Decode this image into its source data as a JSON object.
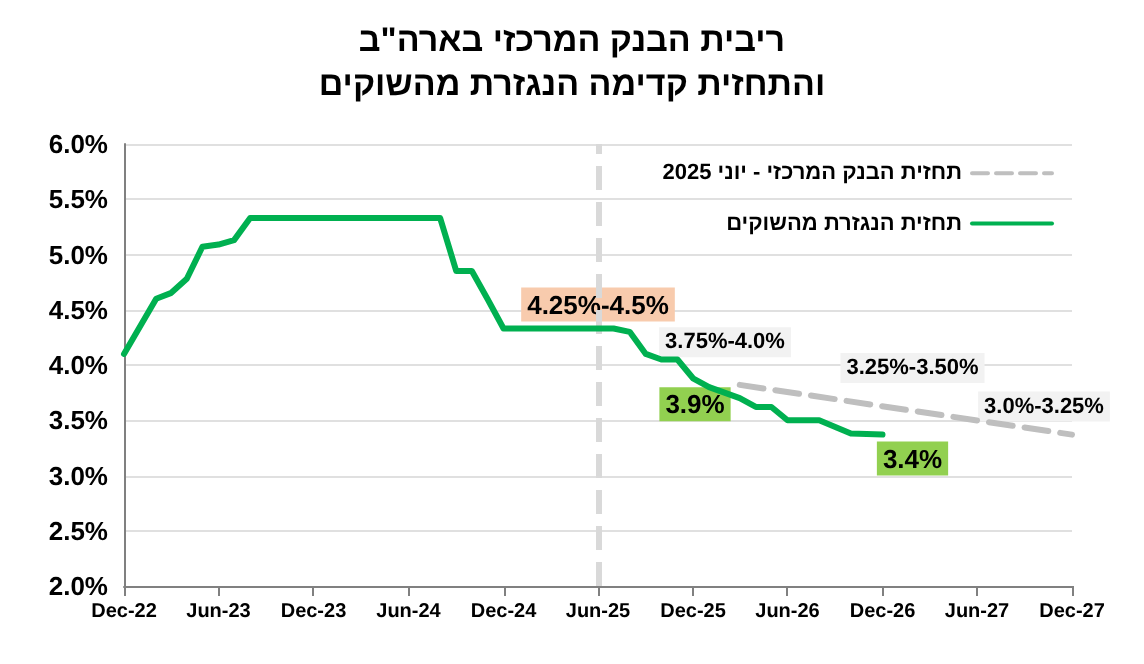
{
  "chart_data": {
    "type": "line",
    "title": "ריבית הבנק המרכזי בארה\"ב\nוהתחזית קדימה הנגזרת מהשוקים",
    "series": [
      {
        "name": "תחזית הבנק המרכזי - יוני 2025",
        "color": "#bfbfbf",
        "line_style": "dashed",
        "x": [
          "2026-03",
          "2027-12"
        ],
        "values": [
          3.82,
          3.37
        ]
      },
      {
        "name": "תחזית הנגזרת מהשוקים",
        "color": "#00b050",
        "line_style": "solid",
        "x": [
          "2022-12",
          "2023-02",
          "2023-03",
          "2023-04",
          "2023-05",
          "2023-06",
          "2023-07",
          "2023-08",
          "2024-08",
          "2024-09",
          "2024-10",
          "2024-11",
          "2024-12",
          "2025-07",
          "2025-08",
          "2025-09",
          "2025-10",
          "2025-11",
          "2025-12",
          "2026-01",
          "2026-03",
          "2026-04",
          "2026-05",
          "2026-06",
          "2026-08",
          "2026-10",
          "2026-12"
        ],
        "values": [
          4.1,
          4.6,
          4.65,
          4.78,
          5.07,
          5.09,
          5.13,
          5.33,
          5.33,
          4.85,
          4.85,
          4.59,
          4.33,
          4.33,
          4.3,
          4.1,
          4.05,
          4.05,
          3.88,
          3.8,
          3.7,
          3.62,
          3.62,
          3.5,
          3.5,
          3.38,
          3.37
        ]
      }
    ],
    "xlim": [
      "2022-12",
      "2027-12"
    ],
    "xticks": [
      {
        "value": "2022-12",
        "label": "Dec-22"
      },
      {
        "value": "2023-06",
        "label": "Jun-23"
      },
      {
        "value": "2023-12",
        "label": "Dec-23"
      },
      {
        "value": "2024-06",
        "label": "Jun-24"
      },
      {
        "value": "2024-12",
        "label": "Dec-24"
      },
      {
        "value": "2025-06",
        "label": "Jun-25"
      },
      {
        "value": "2025-12",
        "label": "Dec-25"
      },
      {
        "value": "2026-06",
        "label": "Jun-26"
      },
      {
        "value": "2026-12",
        "label": "Dec-26"
      },
      {
        "value": "2027-06",
        "label": "Jun-27"
      },
      {
        "value": "2027-12",
        "label": "Dec-27"
      }
    ],
    "ylim": [
      2,
      6
    ],
    "yticks": [
      {
        "value": 2,
        "label": "2.0%"
      },
      {
        "value": 2.5,
        "label": "2.5%"
      },
      {
        "value": 3,
        "label": "3.0%"
      },
      {
        "value": 3.5,
        "label": "3.5%"
      },
      {
        "value": 4,
        "label": "4.0%"
      },
      {
        "value": 4.5,
        "label": "4.5%"
      },
      {
        "value": 5,
        "label": "5.0%"
      },
      {
        "value": 5.5,
        "label": "5.5%"
      },
      {
        "value": 6,
        "label": "6.0%"
      }
    ],
    "ref_lines": [
      {
        "axis": "x",
        "value": "2025-06",
        "color": "#d9d9d9",
        "line_style": "dashed"
      }
    ],
    "annotations": [
      {
        "text": "4.25%-4.5%",
        "x": "2025-06",
        "y": 4.33
      },
      {
        "text": "3.75%-4.0%",
        "x": "2025-12",
        "y": 3.88
      },
      {
        "text": "3.25%-3.50%",
        "x": "2026-12",
        "y": 3.63
      },
      {
        "text": "3.0%-3.25%",
        "x": "2027-12",
        "y": 3.37
      },
      {
        "text": "3.9%",
        "x": "2025-12",
        "y": 3.88
      },
      {
        "text": "3.4%",
        "x": "2026-12",
        "y": 3.37
      }
    ],
    "grid": "y",
    "legend": "top right",
    "marker": "none"
  }
}
